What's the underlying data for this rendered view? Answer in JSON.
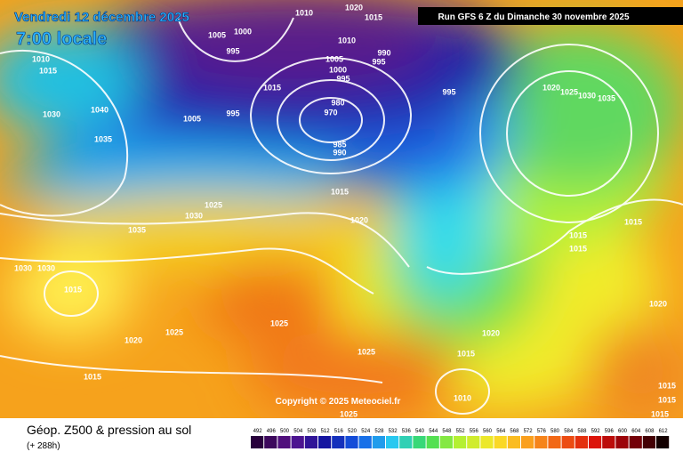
{
  "header": {
    "date": "Vendredi 12 décembre 2025",
    "time": "7:00 locale",
    "run": "Run GFS 6 Z du Dimanche 30 novembre 2025"
  },
  "copyright": "Copyright © 2025 Meteociel.fr",
  "footer": {
    "title": "Géop. Z500 & pression au sol",
    "step": "(+ 288h)"
  },
  "scale": {
    "labels": [
      492,
      496,
      500,
      504,
      508,
      512,
      516,
      520,
      524,
      528,
      532,
      536,
      540,
      544,
      548,
      552,
      556,
      560,
      564,
      568,
      572,
      576,
      580,
      584,
      588,
      592,
      596,
      600,
      604,
      608,
      612
    ]
  },
  "isobar_labels": [
    "1010",
    "1020",
    "1015",
    "1010",
    "1005",
    "1000",
    "995",
    "1010",
    "1015",
    "1005",
    "1000",
    "995",
    "990",
    "995",
    "995",
    "1015",
    "1005",
    "995",
    "980",
    "970",
    "985",
    "990",
    "1030",
    "1040",
    "1035",
    "1020",
    "1025",
    "1030",
    "1035",
    "1015",
    "1025",
    "1030",
    "1020",
    "1035",
    "1015",
    "1015",
    "1015",
    "1030",
    "1030",
    "1015",
    "1020",
    "1025",
    "1025",
    "1020",
    "1020",
    "1025",
    "1015",
    "1015",
    "1010",
    "1015",
    "1015",
    "1015",
    "1025"
  ]
}
